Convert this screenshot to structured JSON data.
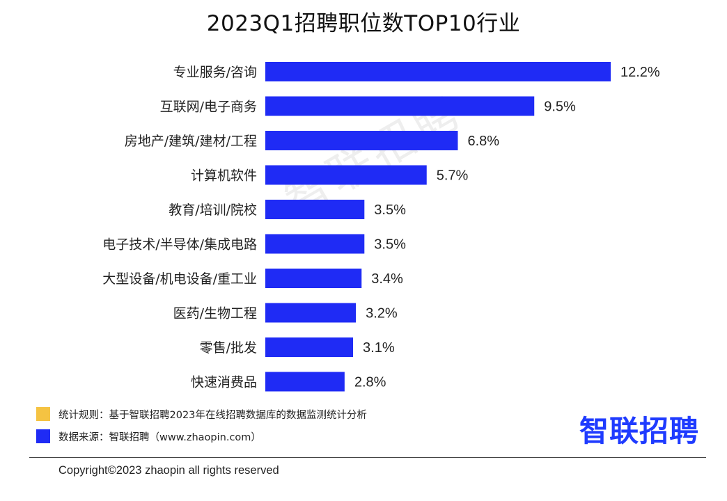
{
  "chart_data": {
    "type": "bar",
    "orientation": "horizontal",
    "title": "2023Q1招聘职位数TOP10行业",
    "categories": [
      "专业服务/咨询",
      "互联网/电子商务",
      "房地产/建筑/建材/工程",
      "计算机软件",
      "教育/培训/院校",
      "电子技术/半导体/集成电路",
      "大型设备/机电设备/重工业",
      "医药/生物工程",
      "零售/批发",
      "快速消费品"
    ],
    "values": [
      12.2,
      9.5,
      6.8,
      5.7,
      3.5,
      3.5,
      3.4,
      3.2,
      3.1,
      2.8
    ],
    "value_labels": [
      "12.2%",
      "9.5%",
      "6.8%",
      "5.7%",
      "3.5%",
      "3.5%",
      "3.4%",
      "3.2%",
      "3.1%",
      "2.8%"
    ],
    "bar_color": "#1f2bf5",
    "grid": false,
    "legend": "none"
  },
  "watermark": "智联招聘",
  "notes": [
    {
      "color": "#f5c342",
      "text": "统计规则：基于智联招聘2023年在线招聘数据库的数据监测统计分析"
    },
    {
      "color": "#1f2bf5",
      "text": "数据来源：智联招聘（www.zhaopin.com）"
    }
  ],
  "brand": "智联招聘",
  "copyright": "Copyright©2023 zhaopin all rights reserved"
}
